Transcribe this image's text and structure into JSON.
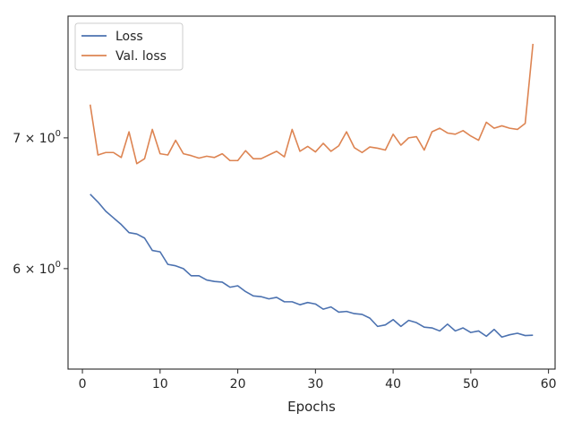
{
  "chart_data": {
    "type": "line",
    "xlabel": "Epochs",
    "ylabel": "",
    "y_scale": "log",
    "xlim": [
      -1.85,
      60.85
    ],
    "ylim": [
      5.33,
      8.08
    ],
    "x_ticks": [
      0,
      10,
      20,
      30,
      40,
      50,
      60
    ],
    "x_tick_labels": [
      "0",
      "10",
      "20",
      "30",
      "40",
      "50",
      "60"
    ],
    "y_ticks": [
      6,
      7
    ],
    "y_tick_labels": [
      {
        "base": "6 × 10",
        "exp": "0"
      },
      {
        "base": "7 × 10",
        "exp": "0"
      }
    ],
    "grid": false,
    "legend_position": "top-left",
    "x": [
      1,
      2,
      3,
      4,
      5,
      6,
      7,
      8,
      9,
      10,
      11,
      12,
      13,
      14,
      15,
      16,
      17,
      18,
      19,
      20,
      21,
      22,
      23,
      24,
      25,
      26,
      27,
      28,
      29,
      30,
      31,
      32,
      33,
      34,
      35,
      36,
      37,
      38,
      39,
      40,
      41,
      42,
      43,
      44,
      45,
      46,
      47,
      48,
      49,
      50,
      51,
      52,
      53,
      54,
      55,
      56,
      57,
      58
    ],
    "series": [
      {
        "name": "Loss",
        "color": "#4c72b0",
        "values": [
          6.55,
          6.49,
          6.42,
          6.37,
          6.32,
          6.26,
          6.25,
          6.22,
          6.13,
          6.12,
          6.03,
          6.02,
          6.0,
          5.95,
          5.95,
          5.92,
          5.91,
          5.905,
          5.87,
          5.88,
          5.84,
          5.81,
          5.805,
          5.79,
          5.8,
          5.77,
          5.77,
          5.75,
          5.765,
          5.755,
          5.72,
          5.735,
          5.7,
          5.705,
          5.69,
          5.685,
          5.66,
          5.605,
          5.615,
          5.65,
          5.605,
          5.645,
          5.63,
          5.6,
          5.595,
          5.575,
          5.62,
          5.575,
          5.595,
          5.565,
          5.575,
          5.54,
          5.585,
          5.535,
          5.55,
          5.56,
          5.545,
          5.547
        ]
      },
      {
        "name": "Val. loss",
        "color": "#dd8452",
        "values": [
          7.28,
          6.86,
          6.88,
          6.88,
          6.84,
          7.05,
          6.79,
          6.83,
          7.07,
          6.87,
          6.86,
          6.98,
          6.87,
          6.855,
          6.835,
          6.85,
          6.84,
          6.87,
          6.815,
          6.815,
          6.895,
          6.83,
          6.83,
          6.86,
          6.89,
          6.845,
          7.07,
          6.89,
          6.93,
          6.885,
          6.955,
          6.89,
          6.935,
          7.05,
          6.92,
          6.88,
          6.925,
          6.915,
          6.9,
          7.03,
          6.94,
          7.0,
          7.01,
          6.9,
          7.05,
          7.08,
          7.04,
          7.03,
          7.06,
          7.015,
          6.98,
          7.13,
          7.08,
          7.1,
          7.08,
          7.07,
          7.12,
          7.82
        ]
      }
    ]
  }
}
